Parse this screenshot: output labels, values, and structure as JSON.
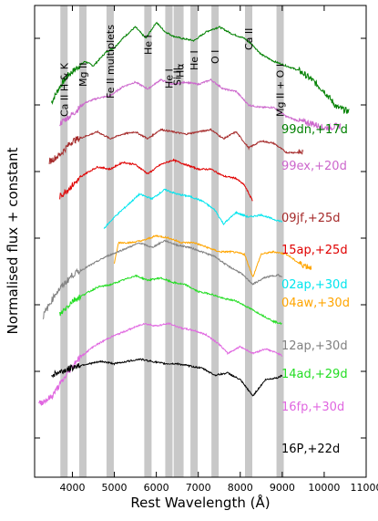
{
  "chart_data": {
    "type": "line",
    "xlabel": "Rest Wavelength (Å)",
    "ylabel": "Normalised flux + constant",
    "xlim": [
      3100,
      11000
    ],
    "x_ticks": [
      4000,
      5000,
      6000,
      7000,
      8000,
      9000,
      10000,
      11000
    ],
    "y_ticks_labeled": false,
    "grid": false,
    "line_bands": [
      {
        "name": "Ca II H & K",
        "x": 3800
      },
      {
        "name": "Mg II",
        "x": 4250
      },
      {
        "name": "Fe II multiplets",
        "x": 4900
      },
      {
        "name": "He I",
        "x": 5800
      },
      {
        "name": "He I",
        "x": 6300
      },
      {
        "name": "Si II",
        "x": 6500
      },
      {
        "name": "Hα",
        "x": 6563
      },
      {
        "name": "He I",
        "x": 6900
      },
      {
        "name": "O I",
        "x": 7400
      },
      {
        "name": "Ca II",
        "x": 8200
      },
      {
        "name": "Mg II + O I",
        "x": 8950
      }
    ],
    "series": [
      {
        "name": "99dn,+17d",
        "color": "#008000",
        "offset": 9.2,
        "x_range": [
          3500,
          10600
        ],
        "shape": [
          [
            3500,
            -0.9
          ],
          [
            3700,
            -0.2
          ],
          [
            3900,
            0.3
          ],
          [
            4100,
            0.6
          ],
          [
            4300,
            0.9
          ],
          [
            4500,
            0.7
          ],
          [
            4800,
            1.3
          ],
          [
            5000,
            1.5
          ],
          [
            5200,
            1.9
          ],
          [
            5500,
            2.4
          ],
          [
            5750,
            1.9
          ],
          [
            6000,
            2.6
          ],
          [
            6200,
            2.2
          ],
          [
            6400,
            2.0
          ],
          [
            6600,
            1.9
          ],
          [
            6900,
            1.8
          ],
          [
            7200,
            2.2
          ],
          [
            7500,
            2.4
          ],
          [
            7800,
            2.1
          ],
          [
            8100,
            1.9
          ],
          [
            8300,
            1.6
          ],
          [
            8500,
            1.2
          ],
          [
            8800,
            0.9
          ],
          [
            9100,
            0.7
          ],
          [
            9400,
            0.5
          ],
          [
            9700,
            0.1
          ],
          [
            10000,
            -0.4
          ],
          [
            10300,
            -1.1
          ],
          [
            10600,
            -1.3
          ]
        ]
      },
      {
        "name": "99ex,+20d",
        "color": "#cc66cc",
        "offset": 7.9,
        "x_range": [
          3700,
          10400
        ],
        "shape": [
          [
            3700,
            0.0
          ],
          [
            4000,
            0.4
          ],
          [
            4300,
            0.9
          ],
          [
            4600,
            1.1
          ],
          [
            4900,
            1.2
          ],
          [
            5200,
            1.6
          ],
          [
            5500,
            1.8
          ],
          [
            5800,
            1.5
          ],
          [
            6100,
            1.9
          ],
          [
            6400,
            1.7
          ],
          [
            6700,
            1.8
          ],
          [
            7000,
            1.7
          ],
          [
            7300,
            1.9
          ],
          [
            7600,
            1.5
          ],
          [
            7900,
            1.4
          ],
          [
            8200,
            0.8
          ],
          [
            8500,
            0.7
          ],
          [
            8800,
            0.7
          ],
          [
            9100,
            0.3
          ],
          [
            9400,
            0.1
          ],
          [
            9700,
            0.0
          ],
          [
            10000,
            -0.2
          ],
          [
            10400,
            -0.1
          ]
        ]
      },
      {
        "name": "09jf,+25d",
        "color": "#a52a2a",
        "offset": 6.7,
        "x_range": [
          3450,
          9500
        ],
        "shape": [
          [
            3450,
            0.0
          ],
          [
            3700,
            0.3
          ],
          [
            4000,
            0.9
          ],
          [
            4300,
            1.1
          ],
          [
            4600,
            1.3
          ],
          [
            4900,
            1.0
          ],
          [
            5200,
            1.2
          ],
          [
            5500,
            1.3
          ],
          [
            5800,
            1.0
          ],
          [
            6100,
            1.4
          ],
          [
            6400,
            1.3
          ],
          [
            6700,
            1.2
          ],
          [
            7000,
            1.3
          ],
          [
            7300,
            1.4
          ],
          [
            7600,
            1.0
          ],
          [
            7900,
            1.3
          ],
          [
            8200,
            0.6
          ],
          [
            8500,
            0.9
          ],
          [
            8800,
            0.8
          ],
          [
            9100,
            0.4
          ],
          [
            9500,
            0.4
          ]
        ]
      },
      {
        "name": "15ap,+25d",
        "color": "#e00000",
        "offset": 5.6,
        "x_range": [
          3700,
          8300
        ],
        "shape": [
          [
            3700,
            0.0
          ],
          [
            4000,
            0.5
          ],
          [
            4300,
            1.0
          ],
          [
            4600,
            1.3
          ],
          [
            4900,
            1.2
          ],
          [
            5200,
            1.5
          ],
          [
            5500,
            1.4
          ],
          [
            5800,
            1.0
          ],
          [
            6100,
            1.4
          ],
          [
            6400,
            1.6
          ],
          [
            6700,
            1.4
          ],
          [
            7000,
            1.2
          ],
          [
            7300,
            1.2
          ],
          [
            7600,
            0.9
          ],
          [
            7900,
            0.8
          ],
          [
            8100,
            0.5
          ],
          [
            8300,
            -0.2
          ]
        ]
      },
      {
        "name": "02ap,+30d",
        "color": "#00e5ee",
        "offset": 4.6,
        "x_range": [
          4750,
          9000
        ],
        "shape": [
          [
            4750,
            0.0
          ],
          [
            5000,
            0.5
          ],
          [
            5300,
            1.0
          ],
          [
            5600,
            1.5
          ],
          [
            5900,
            1.3
          ],
          [
            6200,
            1.7
          ],
          [
            6500,
            1.5
          ],
          [
            6800,
            1.4
          ],
          [
            7100,
            1.2
          ],
          [
            7400,
            0.8
          ],
          [
            7600,
            0.2
          ],
          [
            7900,
            0.7
          ],
          [
            8200,
            0.5
          ],
          [
            8500,
            0.6
          ],
          [
            8800,
            0.4
          ],
          [
            9000,
            0.3
          ]
        ]
      },
      {
        "name": "04aw,+30d",
        "color": "#ffa500",
        "offset": 3.8,
        "x_range": [
          5000,
          9700
        ],
        "shape": [
          [
            5000,
            -0.4
          ],
          [
            5100,
            0.5
          ],
          [
            5400,
            0.5
          ],
          [
            5700,
            0.6
          ],
          [
            6000,
            0.8
          ],
          [
            6300,
            0.7
          ],
          [
            6600,
            0.5
          ],
          [
            6900,
            0.5
          ],
          [
            7200,
            0.3
          ],
          [
            7500,
            0.1
          ],
          [
            7800,
            0.1
          ],
          [
            8100,
            0.0
          ],
          [
            8300,
            -1.0
          ],
          [
            8500,
            0.0
          ],
          [
            8800,
            0.1
          ],
          [
            9100,
            0.0
          ],
          [
            9400,
            -0.4
          ],
          [
            9700,
            -0.6
          ]
        ]
      },
      {
        "name": "12ap,+30d",
        "color": "#808080",
        "offset": 3.0,
        "x_range": [
          3300,
          9000
        ],
        "shape": [
          [
            3300,
            -1.6
          ],
          [
            3600,
            -0.6
          ],
          [
            4000,
            0.2
          ],
          [
            4400,
            0.6
          ],
          [
            4800,
            1.0
          ],
          [
            5200,
            1.3
          ],
          [
            5600,
            1.6
          ],
          [
            5900,
            1.4
          ],
          [
            6200,
            1.7
          ],
          [
            6500,
            1.5
          ],
          [
            6800,
            1.4
          ],
          [
            7100,
            1.2
          ],
          [
            7400,
            1.0
          ],
          [
            7700,
            0.6
          ],
          [
            8000,
            0.3
          ],
          [
            8300,
            -0.2
          ],
          [
            8600,
            0.1
          ],
          [
            8900,
            0.2
          ],
          [
            9000,
            0.1
          ]
        ]
      },
      {
        "name": "14ad,+29d",
        "color": "#22dd22",
        "offset": 1.9,
        "x_range": [
          3700,
          9000
        ],
        "shape": [
          [
            3700,
            0.0
          ],
          [
            4000,
            0.6
          ],
          [
            4300,
            0.9
          ],
          [
            4600,
            1.2
          ],
          [
            4900,
            1.3
          ],
          [
            5200,
            1.5
          ],
          [
            5500,
            1.7
          ],
          [
            5800,
            1.5
          ],
          [
            6100,
            1.6
          ],
          [
            6400,
            1.4
          ],
          [
            6700,
            1.3
          ],
          [
            7000,
            1.0
          ],
          [
            7300,
            0.9
          ],
          [
            7600,
            0.7
          ],
          [
            7900,
            0.6
          ],
          [
            8200,
            0.3
          ],
          [
            8500,
            0.0
          ],
          [
            8800,
            -0.3
          ],
          [
            9000,
            -0.4
          ]
        ]
      },
      {
        "name": "16fp,+30d",
        "color": "#e066e0",
        "offset": 0.9,
        "x_range": [
          3200,
          9000
        ],
        "shape": [
          [
            3200,
            -2.5
          ],
          [
            3500,
            -2.2
          ],
          [
            3800,
            -1.4
          ],
          [
            4100,
            -0.6
          ],
          [
            4500,
            0.0
          ],
          [
            4900,
            0.4
          ],
          [
            5300,
            0.7
          ],
          [
            5700,
            1.0
          ],
          [
            6000,
            0.9
          ],
          [
            6300,
            1.0
          ],
          [
            6600,
            0.8
          ],
          [
            6900,
            0.7
          ],
          [
            7200,
            0.5
          ],
          [
            7500,
            0.1
          ],
          [
            7700,
            -0.3
          ],
          [
            8000,
            0.0
          ],
          [
            8300,
            -0.3
          ],
          [
            8600,
            -0.1
          ],
          [
            8900,
            -0.3
          ],
          [
            9000,
            -0.4
          ]
        ]
      },
      {
        "name": "16P,+22d",
        "color": "#000000",
        "offset": 0.0,
        "x_range": [
          3500,
          9000
        ],
        "shape": [
          [
            3500,
            0.0
          ],
          [
            3800,
            0.2
          ],
          [
            4100,
            0.4
          ],
          [
            4400,
            0.5
          ],
          [
            4700,
            0.6
          ],
          [
            5000,
            0.5
          ],
          [
            5300,
            0.6
          ],
          [
            5600,
            0.7
          ],
          [
            5900,
            0.6
          ],
          [
            6200,
            0.5
          ],
          [
            6500,
            0.5
          ],
          [
            6800,
            0.4
          ],
          [
            7100,
            0.3
          ],
          [
            7400,
            0.0
          ],
          [
            7700,
            0.1
          ],
          [
            8000,
            -0.2
          ],
          [
            8300,
            -0.9
          ],
          [
            8600,
            -0.2
          ],
          [
            8900,
            -0.1
          ],
          [
            9000,
            0.0
          ]
        ]
      }
    ]
  }
}
